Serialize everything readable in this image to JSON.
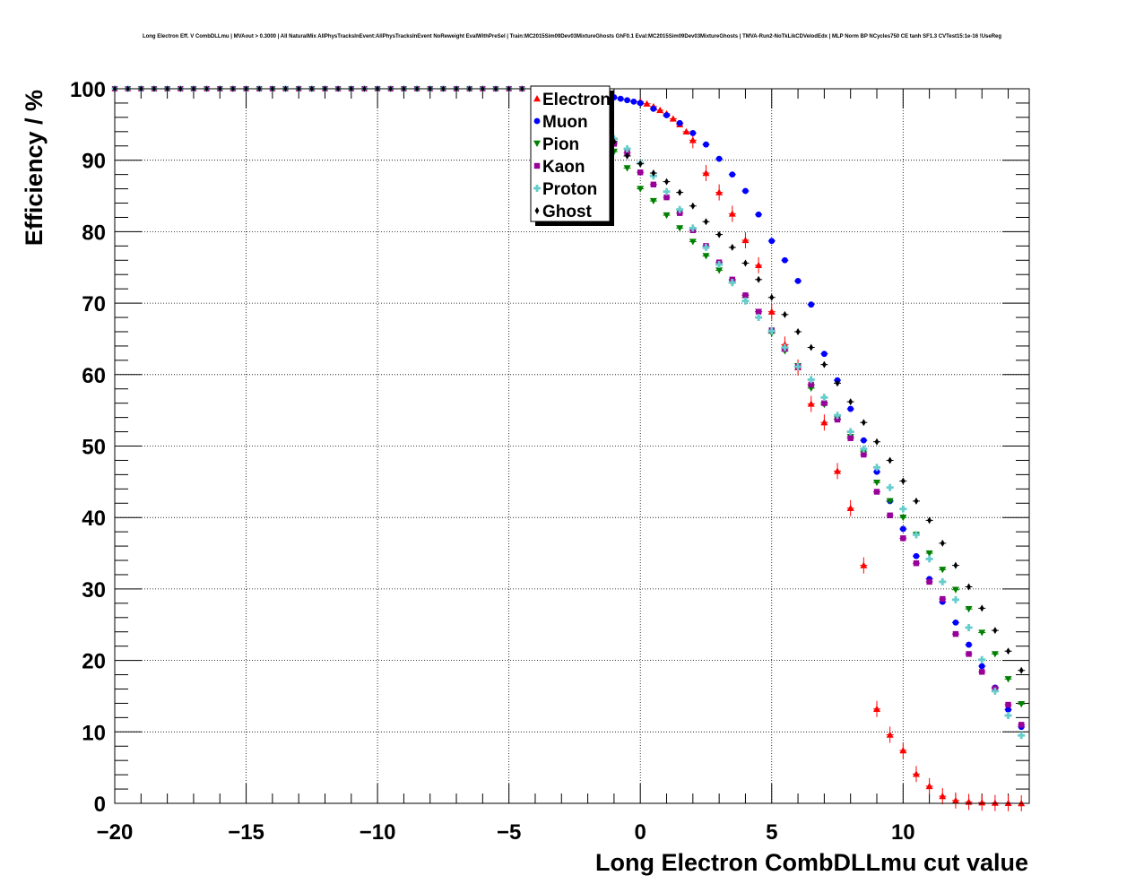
{
  "chart_data": {
    "type": "scatter",
    "title": "Long Electron Eff. V CombDLLmu | MVAout > 0.3000 | All NaturalMix AllPhysTracksInEvent:AllPhysTracksInEvent NoReweight EvalWithPreSel | Train:MC2015Sim09Dev03MixtureGhosts GhF0.1 Eval:MC2015Sim09Dev03MixtureGhosts | TMVA-Run2-NoTkLikCDVelodEdx | MLP Norm BP NCycles750 CE tanh SF1.3 CVTest15:1e-16 !UseReg",
    "xlabel": "Long Electron CombDLLmu cut value",
    "ylabel": "Efficiency / %",
    "xlim": [
      -20,
      14.8
    ],
    "ylim": [
      0,
      100
    ],
    "xticks": [
      -20,
      -15,
      -10,
      -5,
      0,
      5,
      10
    ],
    "xtick_labels": [
      "−20",
      "−15",
      "−10",
      "−5",
      "0",
      "5",
      "10"
    ],
    "yticks": [
      0,
      10,
      20,
      30,
      40,
      50,
      60,
      70,
      80,
      90,
      100
    ],
    "ytick_labels": [
      "0",
      "10",
      "20",
      "30",
      "40",
      "50",
      "60",
      "70",
      "80",
      "90",
      "100"
    ],
    "grid": true,
    "legend_position": "top-center",
    "series": [
      {
        "name": "Electron",
        "color": "#ff0000",
        "marker": "triangle-up",
        "x": [
          0,
          0.25,
          0.5,
          0.75,
          1,
          1.25,
          1.5,
          1.75,
          2,
          2.5,
          3,
          3.5,
          4,
          4.5,
          5,
          5.5,
          6,
          6.5,
          7,
          7.5,
          8,
          8.5,
          9,
          9.5,
          10,
          10.5,
          11,
          11.5,
          12,
          12.5,
          13,
          13.5,
          14,
          14.5
        ],
        "y": [
          98.2,
          97.9,
          97.5,
          97.0,
          96.5,
          95.8,
          95.0,
          94.0,
          92.8,
          88.2,
          85.5,
          82.5,
          78.8,
          75.3,
          68.8,
          64.2,
          61.0,
          55.9,
          53.3,
          46.5,
          41.3,
          33.3,
          13.2,
          9.6,
          7.4,
          4.1,
          2.4,
          1.0,
          0.4,
          0.2,
          0.1,
          0.05,
          0.02,
          0.0
        ]
      },
      {
        "name": "Muon",
        "color": "#0000ff",
        "marker": "circle",
        "x": [
          -3.5,
          -3.25,
          -3,
          -2.75,
          -2.5,
          -2.25,
          -2,
          -1.75,
          -1.5,
          -1.25,
          -1,
          -0.75,
          -0.5,
          -0.25,
          0,
          0.5,
          1,
          1.5,
          2,
          2.5,
          3,
          3.5,
          4,
          4.5,
          5,
          5.5,
          6,
          6.5,
          7,
          7.5,
          8,
          8.5,
          9,
          9.5,
          10,
          10.5,
          11,
          11.5,
          12,
          12.5,
          13,
          13.5,
          14,
          14.5
        ],
        "y": [
          99.8,
          99.7,
          99.6,
          99.5,
          99.4,
          99.3,
          99.2,
          99.1,
          99.0,
          98.9,
          98.8,
          98.6,
          98.4,
          98.2,
          98.0,
          97.2,
          96.3,
          95.2,
          93.8,
          92.2,
          90.2,
          88.0,
          85.7,
          82.4,
          78.7,
          76.0,
          73.1,
          69.8,
          62.9,
          59.2,
          55.2,
          50.8,
          46.4,
          42.3,
          38.4,
          34.6,
          31.4,
          28.2,
          25.3,
          22.2,
          19.2,
          16.2,
          13.1,
          10.7
        ]
      },
      {
        "name": "Pion",
        "color": "#008000",
        "marker": "triangle-down",
        "x": [
          -3.5,
          -3,
          -2.5,
          -2,
          -1.5,
          -1,
          -0.5,
          0,
          0.5,
          1,
          1.5,
          2,
          2.5,
          3,
          3.5,
          4,
          4.5,
          5,
          5.5,
          6,
          6.5,
          7,
          7.5,
          8,
          8.5,
          9,
          9.5,
          10,
          10.5,
          11,
          11.5,
          12,
          12.5,
          13,
          13.5,
          14,
          14.5
        ],
        "y": [
          99.5,
          98.8,
          97.5,
          95.8,
          93.5,
          91.2,
          88.9,
          86.0,
          84.3,
          82.3,
          80.5,
          78.6,
          76.6,
          74.6,
          72.8,
          70.8,
          68.8,
          65.8,
          63.3,
          61.2,
          58.1,
          55.8,
          53.8,
          51.3,
          49.2,
          44.9,
          42.3,
          40.0,
          37.6,
          35.0,
          32.7,
          29.9,
          27.2,
          23.9,
          20.9,
          17.4,
          13.9
        ]
      },
      {
        "name": "Kaon",
        "color": "#990099",
        "marker": "square",
        "x": [
          -3.5,
          -3,
          -2.5,
          -2,
          -1.5,
          -1,
          -0.5,
          0,
          0.5,
          1,
          1.5,
          2,
          2.5,
          3,
          3.5,
          4,
          4.5,
          5,
          5.5,
          6,
          6.5,
          7,
          7.5,
          8,
          8.5,
          9,
          9.5,
          10,
          10.5,
          11,
          11.5,
          12,
          12.5,
          13,
          13.5,
          14,
          14.5
        ],
        "y": [
          99.6,
          99.0,
          97.8,
          96.2,
          94.3,
          92.3,
          91.0,
          88.3,
          86.6,
          84.8,
          82.6,
          80.2,
          78.0,
          75.7,
          73.3,
          71.1,
          68.8,
          66.2,
          63.6,
          61.1,
          58.6,
          56.0,
          53.7,
          51.1,
          48.8,
          43.6,
          40.3,
          37.1,
          33.6,
          31.0,
          28.6,
          23.7,
          20.9,
          18.4,
          16.1,
          13.8,
          11.0
        ]
      },
      {
        "name": "Proton",
        "color": "#66cccc",
        "marker": "cross",
        "x": [
          -3.5,
          -3,
          -2.5,
          -2,
          -1.5,
          -1,
          -0.5,
          0,
          0.5,
          1,
          1.5,
          2,
          2.5,
          3,
          3.5,
          4,
          4.5,
          5,
          5.5,
          6,
          6.5,
          7,
          7.5,
          8,
          8.5,
          9,
          9.5,
          10,
          10.5,
          11,
          11.5,
          12,
          12.5,
          13,
          13.5,
          14,
          14.5
        ],
        "y": [
          99.5,
          98.6,
          97.2,
          95.6,
          94.2,
          93.0,
          91.6,
          89.6,
          87.8,
          85.6,
          83.1,
          80.5,
          77.8,
          75.4,
          72.9,
          70.3,
          68.0,
          66.1,
          63.8,
          61.1,
          59.3,
          56.8,
          54.3,
          52.0,
          49.6,
          47.0,
          44.2,
          41.2,
          37.6,
          34.2,
          31.0,
          28.5,
          24.6,
          20.1,
          15.7,
          12.3,
          9.5
        ]
      },
      {
        "name": "Ghost",
        "color": "#000000",
        "marker": "diamond",
        "x": [
          -3.5,
          -3,
          -2.5,
          -2,
          -1.5,
          -1,
          -0.5,
          0,
          0.5,
          1,
          1.5,
          2,
          2.5,
          3,
          3.5,
          4,
          4.5,
          5,
          5.5,
          6,
          6.5,
          7,
          7.5,
          8,
          8.5,
          9,
          9.5,
          10,
          10.5,
          11,
          11.5,
          12,
          12.5,
          13,
          13.5,
          14,
          14.5
        ],
        "y": [
          99.3,
          98.5,
          97.3,
          95.9,
          94.3,
          92.6,
          90.6,
          89.5,
          88.2,
          87.0,
          85.5,
          83.6,
          81.4,
          79.6,
          77.8,
          75.6,
          73.3,
          70.8,
          68.4,
          66.0,
          63.8,
          61.4,
          58.8,
          56.2,
          53.3,
          50.6,
          48.0,
          45.1,
          42.3,
          39.6,
          36.4,
          33.3,
          30.3,
          27.3,
          24.2,
          21.3,
          18.6
        ]
      }
    ]
  }
}
